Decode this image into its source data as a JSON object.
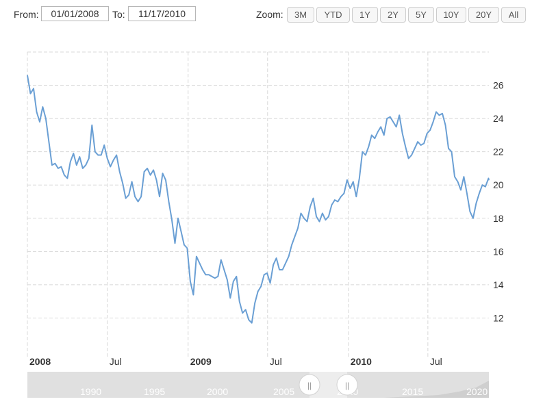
{
  "range_selector": {
    "from_label": "From:",
    "from_value": "01/01/2008",
    "to_label": "To:",
    "to_value": "11/17/2010",
    "zoom_label": "Zoom:",
    "zoom_buttons": [
      "3M",
      "YTD",
      "1Y",
      "2Y",
      "5Y",
      "10Y",
      "20Y",
      "All"
    ]
  },
  "colors": {
    "series": "#6a9fd4",
    "grid": "#d8d8d8",
    "navigator_bg": "#e0e0e0",
    "navigator_window": "#ededed",
    "navigator_text": "#ffffff"
  },
  "chart_data": {
    "type": "line",
    "title": "",
    "xlabel": "",
    "ylabel": "",
    "x_range": [
      "2008-01-01",
      "2010-11-17"
    ],
    "ylim": [
      10,
      28
    ],
    "grid": true,
    "y_axis_position": "right",
    "x_ticks": [
      {
        "date": "2008-01-01",
        "label": "2008",
        "bold": true
      },
      {
        "date": "2008-07-01",
        "label": "Jul",
        "bold": false
      },
      {
        "date": "2009-01-01",
        "label": "2009",
        "bold": true
      },
      {
        "date": "2009-07-01",
        "label": "Jul",
        "bold": false
      },
      {
        "date": "2010-01-01",
        "label": "2010",
        "bold": true
      },
      {
        "date": "2010-07-01",
        "label": "Jul",
        "bold": false
      }
    ],
    "y_ticks": [
      12,
      14,
      16,
      18,
      20,
      22,
      24,
      26
    ],
    "series": [
      {
        "points": [
          [
            "2008-01-01",
            26.6
          ],
          [
            "2008-01-08",
            25.5
          ],
          [
            "2008-01-15",
            25.8
          ],
          [
            "2008-01-22",
            24.4
          ],
          [
            "2008-01-29",
            23.8
          ],
          [
            "2008-02-05",
            24.7
          ],
          [
            "2008-02-12",
            24.0
          ],
          [
            "2008-02-19",
            22.6
          ],
          [
            "2008-02-26",
            21.2
          ],
          [
            "2008-03-04",
            21.3
          ],
          [
            "2008-03-11",
            21.0
          ],
          [
            "2008-03-18",
            21.1
          ],
          [
            "2008-03-25",
            20.6
          ],
          [
            "2008-04-01",
            20.4
          ],
          [
            "2008-04-08",
            21.4
          ],
          [
            "2008-04-15",
            21.9
          ],
          [
            "2008-04-22",
            21.2
          ],
          [
            "2008-04-29",
            21.7
          ],
          [
            "2008-05-06",
            21.0
          ],
          [
            "2008-05-13",
            21.2
          ],
          [
            "2008-05-20",
            21.6
          ],
          [
            "2008-05-27",
            23.6
          ],
          [
            "2008-06-03",
            22.0
          ],
          [
            "2008-06-10",
            21.8
          ],
          [
            "2008-06-17",
            21.8
          ],
          [
            "2008-06-24",
            22.4
          ],
          [
            "2008-07-01",
            21.6
          ],
          [
            "2008-07-08",
            21.1
          ],
          [
            "2008-07-15",
            21.5
          ],
          [
            "2008-07-22",
            21.8
          ],
          [
            "2008-07-29",
            20.8
          ],
          [
            "2008-08-05",
            20.1
          ],
          [
            "2008-08-12",
            19.2
          ],
          [
            "2008-08-19",
            19.4
          ],
          [
            "2008-08-26",
            20.2
          ],
          [
            "2008-09-02",
            19.3
          ],
          [
            "2008-09-09",
            19.0
          ],
          [
            "2008-09-16",
            19.3
          ],
          [
            "2008-09-23",
            20.8
          ],
          [
            "2008-09-30",
            21.0
          ],
          [
            "2008-10-07",
            20.6
          ],
          [
            "2008-10-14",
            20.9
          ],
          [
            "2008-10-21",
            20.3
          ],
          [
            "2008-10-28",
            19.3
          ],
          [
            "2008-11-04",
            20.7
          ],
          [
            "2008-11-11",
            20.3
          ],
          [
            "2008-11-18",
            19.0
          ],
          [
            "2008-11-25",
            17.9
          ],
          [
            "2008-12-02",
            16.5
          ],
          [
            "2008-12-09",
            18.0
          ],
          [
            "2008-12-16",
            17.2
          ],
          [
            "2008-12-23",
            16.4
          ],
          [
            "2008-12-30",
            16.2
          ],
          [
            "2009-01-06",
            14.2
          ],
          [
            "2009-01-13",
            13.4
          ],
          [
            "2009-01-20",
            15.7
          ],
          [
            "2009-01-27",
            15.3
          ],
          [
            "2009-02-03",
            14.9
          ],
          [
            "2009-02-10",
            14.6
          ],
          [
            "2009-02-17",
            14.6
          ],
          [
            "2009-02-24",
            14.5
          ],
          [
            "2009-03-03",
            14.4
          ],
          [
            "2009-03-10",
            14.5
          ],
          [
            "2009-03-17",
            15.5
          ],
          [
            "2009-03-24",
            14.9
          ],
          [
            "2009-03-31",
            14.3
          ],
          [
            "2009-04-07",
            13.2
          ],
          [
            "2009-04-14",
            14.2
          ],
          [
            "2009-04-21",
            14.5
          ],
          [
            "2009-04-28",
            13.0
          ],
          [
            "2009-05-05",
            12.3
          ],
          [
            "2009-05-12",
            12.5
          ],
          [
            "2009-05-19",
            11.9
          ],
          [
            "2009-05-26",
            11.7
          ],
          [
            "2009-06-02",
            12.9
          ],
          [
            "2009-06-09",
            13.6
          ],
          [
            "2009-06-16",
            13.9
          ],
          [
            "2009-06-23",
            14.6
          ],
          [
            "2009-06-30",
            14.7
          ],
          [
            "2009-07-07",
            14.1
          ],
          [
            "2009-07-14",
            15.2
          ],
          [
            "2009-07-21",
            15.6
          ],
          [
            "2009-07-28",
            14.9
          ],
          [
            "2009-08-04",
            14.9
          ],
          [
            "2009-08-11",
            15.3
          ],
          [
            "2009-08-18",
            15.7
          ],
          [
            "2009-08-25",
            16.4
          ],
          [
            "2009-09-01",
            16.9
          ],
          [
            "2009-09-08",
            17.4
          ],
          [
            "2009-09-15",
            18.3
          ],
          [
            "2009-09-22",
            18.0
          ],
          [
            "2009-09-29",
            17.8
          ],
          [
            "2009-10-06",
            18.7
          ],
          [
            "2009-10-13",
            19.2
          ],
          [
            "2009-10-20",
            18.1
          ],
          [
            "2009-10-27",
            17.8
          ],
          [
            "2009-11-03",
            18.3
          ],
          [
            "2009-11-10",
            17.9
          ],
          [
            "2009-11-17",
            18.1
          ],
          [
            "2009-11-24",
            18.8
          ],
          [
            "2009-12-01",
            19.1
          ],
          [
            "2009-12-08",
            19.0
          ],
          [
            "2009-12-15",
            19.3
          ],
          [
            "2009-12-22",
            19.5
          ],
          [
            "2009-12-29",
            20.3
          ],
          [
            "2010-01-05",
            19.8
          ],
          [
            "2010-01-12",
            20.2
          ],
          [
            "2010-01-19",
            19.3
          ],
          [
            "2010-01-26",
            20.4
          ],
          [
            "2010-02-02",
            22.0
          ],
          [
            "2010-02-09",
            21.8
          ],
          [
            "2010-02-16",
            22.3
          ],
          [
            "2010-02-23",
            23.0
          ],
          [
            "2010-03-02",
            22.8
          ],
          [
            "2010-03-09",
            23.2
          ],
          [
            "2010-03-16",
            23.5
          ],
          [
            "2010-03-23",
            23.0
          ],
          [
            "2010-03-30",
            24.0
          ],
          [
            "2010-04-06",
            24.1
          ],
          [
            "2010-04-13",
            23.8
          ],
          [
            "2010-04-20",
            23.5
          ],
          [
            "2010-04-27",
            24.2
          ],
          [
            "2010-05-04",
            23.1
          ],
          [
            "2010-05-11",
            22.3
          ],
          [
            "2010-05-18",
            21.6
          ],
          [
            "2010-05-25",
            21.8
          ],
          [
            "2010-06-01",
            22.2
          ],
          [
            "2010-06-08",
            22.6
          ],
          [
            "2010-06-15",
            22.4
          ],
          [
            "2010-06-22",
            22.5
          ],
          [
            "2010-06-29",
            23.1
          ],
          [
            "2010-07-06",
            23.3
          ],
          [
            "2010-07-13",
            23.8
          ],
          [
            "2010-07-20",
            24.4
          ],
          [
            "2010-07-27",
            24.2
          ],
          [
            "2010-08-03",
            24.3
          ],
          [
            "2010-08-10",
            23.6
          ],
          [
            "2010-08-17",
            22.2
          ],
          [
            "2010-08-24",
            22.0
          ],
          [
            "2010-08-31",
            20.5
          ],
          [
            "2010-09-07",
            20.2
          ],
          [
            "2010-09-14",
            19.7
          ],
          [
            "2010-09-21",
            20.5
          ],
          [
            "2010-09-28",
            19.5
          ],
          [
            "2010-10-05",
            18.4
          ],
          [
            "2010-10-12",
            18.0
          ],
          [
            "2010-10-19",
            18.9
          ],
          [
            "2010-10-26",
            19.5
          ],
          [
            "2010-11-02",
            20.0
          ],
          [
            "2010-11-09",
            19.9
          ],
          [
            "2010-11-16",
            20.4
          ],
          [
            "2010-11-17",
            20.3
          ]
        ]
      }
    ]
  },
  "navigator": {
    "year_labels": [
      "1990",
      "1995",
      "2000",
      "2005",
      "2010",
      "2015",
      "2020"
    ],
    "handle_glyph": "||"
  }
}
